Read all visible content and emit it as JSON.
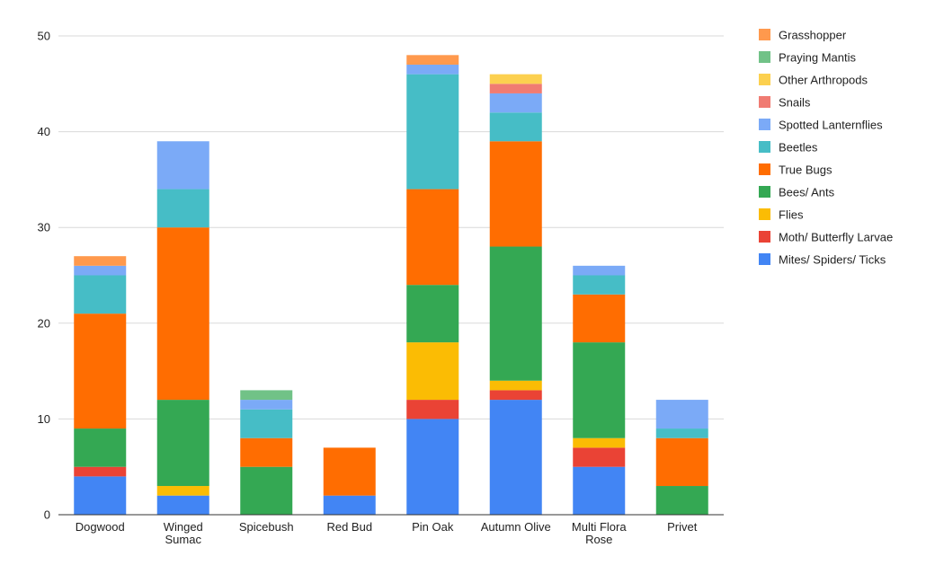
{
  "chart_data": {
    "type": "bar",
    "stacked": true,
    "title": "",
    "xlabel": "",
    "ylabel": "",
    "ylim": [
      0,
      50
    ],
    "yticks": [
      0,
      10,
      20,
      30,
      40,
      50
    ],
    "grid": true,
    "legend_position": "right",
    "categories": [
      [
        "Dogwood"
      ],
      [
        "Winged",
        "Sumac"
      ],
      [
        "Spicebush"
      ],
      [
        "Red Bud"
      ],
      [
        "Pin Oak"
      ],
      [
        "Autumn Olive"
      ],
      [
        "Multi Flora",
        "Rose"
      ],
      [
        "Privet"
      ]
    ],
    "series": [
      {
        "name": "Mites/ Spiders/ Ticks",
        "color": "#4285f4",
        "values": [
          4,
          2,
          0,
          2,
          10,
          12,
          5,
          0
        ]
      },
      {
        "name": "Moth/ Butterfly Larvae",
        "color": "#ea4335",
        "values": [
          1,
          0,
          0,
          0,
          2,
          1,
          2,
          0
        ]
      },
      {
        "name": "Flies",
        "color": "#fbbc04",
        "values": [
          0,
          1,
          0,
          0,
          6,
          1,
          1,
          0
        ]
      },
      {
        "name": "Bees/ Ants",
        "color": "#34a853",
        "values": [
          4,
          9,
          5,
          0,
          6,
          14,
          10,
          3
        ]
      },
      {
        "name": "True Bugs",
        "color": "#ff6d01",
        "values": [
          12,
          18,
          3,
          5,
          10,
          11,
          5,
          5
        ]
      },
      {
        "name": "Beetles",
        "color": "#46bdc6",
        "values": [
          4,
          4,
          3,
          0,
          12,
          3,
          2,
          1
        ]
      },
      {
        "name": "Spotted Lanternflies",
        "color": "#7baaf7",
        "values": [
          1,
          5,
          1,
          0,
          1,
          2,
          1,
          3
        ]
      },
      {
        "name": "Snails",
        "color": "#f07b72",
        "values": [
          0,
          0,
          0,
          0,
          0,
          1,
          0,
          0
        ]
      },
      {
        "name": "Other Arthropods",
        "color": "#fcd04f",
        "values": [
          0,
          0,
          0,
          0,
          0,
          1,
          0,
          0
        ]
      },
      {
        "name": "Praying Mantis",
        "color": "#71c287",
        "values": [
          0,
          0,
          1,
          0,
          0,
          0,
          0,
          0
        ]
      },
      {
        "name": "Grasshopper",
        "color": "#ff994d",
        "values": [
          1,
          0,
          0,
          0,
          1,
          0,
          0,
          0
        ]
      }
    ],
    "legend_order": [
      "Grasshopper",
      "Praying Mantis",
      "Other Arthropods",
      "Snails",
      "Spotted Lanternflies",
      "Beetles",
      "True Bugs",
      "Bees/ Ants",
      "Flies",
      "Moth/ Butterfly Larvae",
      "Mites/ Spiders/ Ticks"
    ]
  }
}
